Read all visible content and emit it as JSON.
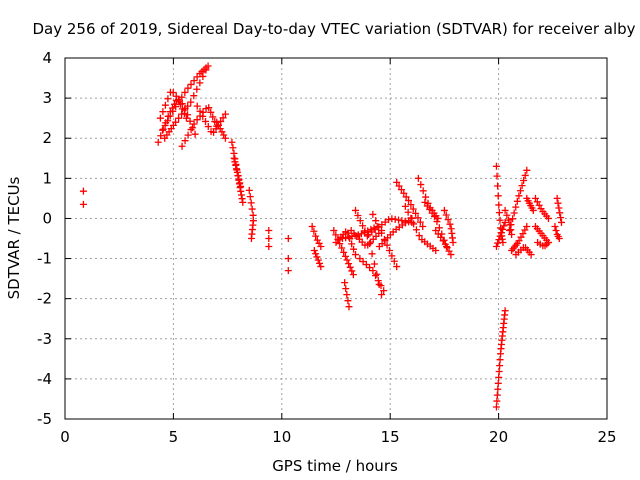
{
  "chart_data": {
    "type": "scatter",
    "title": "Day 256 of 2019, Sidereal Day-to-day VTEC variation (SDTVAR) for receiver alby",
    "xlabel": "GPS time / hours",
    "ylabel": "SDTVAR / TECUs",
    "xlim": [
      0,
      25
    ],
    "ylim": [
      -5,
      4
    ],
    "xticks": [
      0,
      5,
      10,
      15,
      20,
      25
    ],
    "yticks": [
      -5,
      -4,
      -3,
      -2,
      -1,
      0,
      1,
      2,
      3,
      4
    ],
    "xtick_labels": [
      "0",
      "5",
      "10",
      "15",
      "20",
      "25"
    ],
    "ytick_labels": [
      "-5",
      "-4",
      "-3",
      "-2",
      "-1",
      "0",
      "1",
      "2",
      "3",
      "4"
    ],
    "grid": true,
    "marker": "+",
    "color": "#ff0000",
    "series_note": "values estimated from the plotted tracks; points are sampled along each track",
    "tracks": [
      {
        "x": [
          0.85,
          0.85
        ],
        "y": [
          0.35,
          0.68
        ],
        "n": 2
      },
      {
        "x": [
          4.3,
          4.8,
          5.2,
          5.6
        ],
        "y": [
          1.9,
          2.6,
          3.0,
          2.5
        ],
        "n": 14
      },
      {
        "x": [
          4.4,
          4.9,
          5.5,
          6.0
        ],
        "y": [
          2.5,
          3.2,
          2.8,
          2.1
        ],
        "n": 14
      },
      {
        "x": [
          4.5,
          5.0,
          5.6,
          6.2,
          6.6
        ],
        "y": [
          2.2,
          2.7,
          3.2,
          3.6,
          3.8
        ],
        "n": 18
      },
      {
        "x": [
          4.6,
          5.1,
          5.8,
          6.5
        ],
        "y": [
          2.0,
          2.4,
          2.9,
          3.7
        ],
        "n": 16
      },
      {
        "x": [
          5.4,
          6.0,
          6.6,
          7.0
        ],
        "y": [
          1.8,
          2.4,
          2.8,
          2.3
        ],
        "n": 14
      },
      {
        "x": [
          6.1,
          6.8,
          7.4
        ],
        "y": [
          2.8,
          2.1,
          2.6
        ],
        "n": 12
      },
      {
        "x": [
          7.0,
          7.4
        ],
        "y": [
          2.4,
          2.0
        ],
        "n": 6
      },
      {
        "x": [
          7.7,
          8.0,
          8.2
        ],
        "y": [
          1.9,
          1.0,
          0.4
        ],
        "n": 14
      },
      {
        "x": [
          7.8,
          8.1
        ],
        "y": [
          1.5,
          0.8
        ],
        "n": 9
      },
      {
        "x": [
          8.5,
          8.7,
          8.6
        ],
        "y": [
          0.7,
          0.0,
          -0.5
        ],
        "n": 10
      },
      {
        "x": [
          9.4,
          9.4
        ],
        "y": [
          -0.3,
          -0.7
        ],
        "n": 3
      },
      {
        "x": [
          10.3,
          10.3,
          10.3
        ],
        "y": [
          -0.5,
          -1.0,
          -1.3
        ],
        "n": 3
      },
      {
        "x": [
          11.4,
          11.6,
          11.8
        ],
        "y": [
          -0.2,
          -0.5,
          -0.7
        ],
        "n": 6
      },
      {
        "x": [
          11.5,
          11.8
        ],
        "y": [
          -0.8,
          -1.2
        ],
        "n": 6
      },
      {
        "x": [
          12.4,
          12.9,
          13.3
        ],
        "y": [
          -0.3,
          -0.9,
          -1.4
        ],
        "n": 12
      },
      {
        "x": [
          12.5,
          13.0,
          13.4
        ],
        "y": [
          -0.6,
          -0.3,
          -0.9
        ],
        "n": 10
      },
      {
        "x": [
          12.9,
          13.0,
          13.1
        ],
        "y": [
          -1.6,
          -1.9,
          -2.2
        ],
        "n": 5
      },
      {
        "x": [
          12.8,
          13.6,
          14.4
        ],
        "y": [
          -0.5,
          -0.4,
          -0.2
        ],
        "n": 12
      },
      {
        "x": [
          13.2,
          13.9,
          14.6
        ],
        "y": [
          -0.3,
          -0.7,
          -0.3
        ],
        "n": 12
      },
      {
        "x": [
          13.4,
          14.0,
          14.6
        ],
        "y": [
          0.2,
          -0.5,
          -1.9
        ],
        "n": 12
      },
      {
        "x": [
          13.6,
          14.2,
          14.7
        ],
        "y": [
          -1.0,
          -1.3,
          -1.8
        ],
        "n": 9
      },
      {
        "x": [
          14.2,
          14.8,
          15.3
        ],
        "y": [
          0.1,
          -0.6,
          -1.2
        ],
        "n": 10
      },
      {
        "x": [
          14.0,
          15.0,
          16.0
        ],
        "y": [
          -0.4,
          0.0,
          -0.1
        ],
        "n": 14
      },
      {
        "x": [
          14.5,
          15.2,
          16.0
        ],
        "y": [
          -0.7,
          -0.3,
          0.0
        ],
        "n": 12
      },
      {
        "x": [
          15.3,
          15.9,
          16.5
        ],
        "y": [
          0.9,
          0.4,
          -0.2
        ],
        "n": 12
      },
      {
        "x": [
          15.7,
          16.4,
          17.1
        ],
        "y": [
          0.3,
          -0.5,
          -0.8
        ],
        "n": 12
      },
      {
        "x": [
          16.3,
          16.8,
          17.2
        ],
        "y": [
          1.0,
          0.3,
          0.0
        ],
        "n": 10
      },
      {
        "x": [
          16.6,
          17.1,
          17.6
        ],
        "y": [
          0.4,
          0.0,
          -0.7
        ],
        "n": 10
      },
      {
        "x": [
          17.1,
          17.5,
          17.8
        ],
        "y": [
          -0.3,
          -0.6,
          -0.9
        ],
        "n": 8
      },
      {
        "x": [
          17.5,
          17.8,
          17.9
        ],
        "y": [
          0.2,
          -0.2,
          -0.6
        ],
        "n": 8
      },
      {
        "x": [
          19.9,
          20.0,
          20.1,
          20.2
        ],
        "y": [
          1.3,
          0.4,
          -0.3,
          -0.6
        ],
        "n": 12
      },
      {
        "x": [
          19.9,
          20.1,
          20.3
        ],
        "y": [
          -0.7,
          -0.4,
          -0.1
        ],
        "n": 8
      },
      {
        "x": [
          19.9,
          20.1,
          20.3
        ],
        "y": [
          -4.7,
          -3.3,
          -2.3
        ],
        "n": 20
      },
      {
        "x": [
          20.3,
          20.5,
          20.6
        ],
        "y": [
          0.2,
          -0.1,
          -0.4
        ],
        "n": 6
      },
      {
        "x": [
          20.5,
          20.9,
          21.3
        ],
        "y": [
          -0.3,
          0.5,
          1.2
        ],
        "n": 12
      },
      {
        "x": [
          20.6,
          20.9,
          21.3
        ],
        "y": [
          -0.8,
          -0.6,
          -0.2
        ],
        "n": 10
      },
      {
        "x": [
          20.8,
          21.2,
          21.5
        ],
        "y": [
          -0.9,
          -0.7,
          -0.9
        ],
        "n": 8
      },
      {
        "x": [
          21.3,
          21.6
        ],
        "y": [
          0.5,
          0.2
        ],
        "n": 6
      },
      {
        "x": [
          21.7,
          22.0,
          22.3
        ],
        "y": [
          -0.2,
          -0.4,
          -0.6
        ],
        "n": 8
      },
      {
        "x": [
          21.7,
          22.0,
          22.3
        ],
        "y": [
          0.5,
          0.2,
          0.0
        ],
        "n": 8
      },
      {
        "x": [
          21.8,
          22.1,
          22.3
        ],
        "y": [
          -0.6,
          -0.7,
          -0.6
        ],
        "n": 6
      },
      {
        "x": [
          22.7,
          22.8,
          22.9
        ],
        "y": [
          0.5,
          0.2,
          -0.1
        ],
        "n": 6
      },
      {
        "x": [
          22.6,
          22.7,
          22.8
        ],
        "y": [
          -0.2,
          -0.4,
          -0.5
        ],
        "n": 5
      }
    ]
  }
}
